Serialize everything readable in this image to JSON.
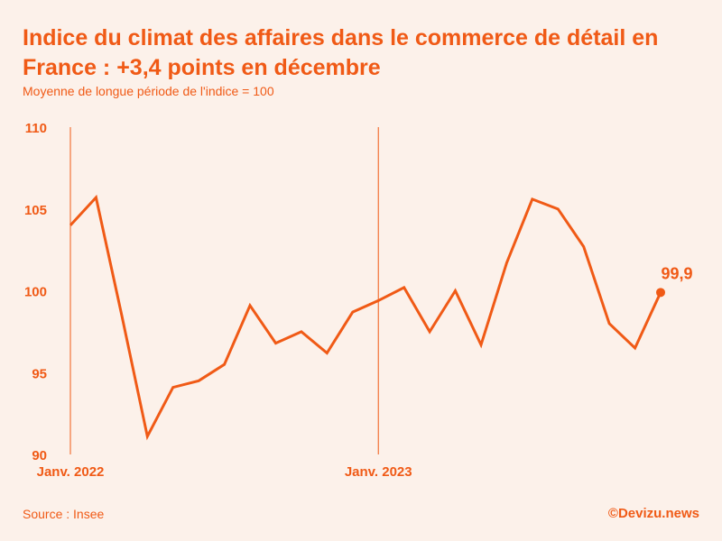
{
  "colors": {
    "accent": "#f05a16",
    "background": "#fcf1ea"
  },
  "title": "Indice du climat des affaires dans le commerce de détail en France : +3,4 points en décembre",
  "subtitle": "Moyenne de longue période de l'indice = 100",
  "footer": {
    "source": "Source : Insee",
    "credit": "©Devizu.news"
  },
  "chart_data": {
    "type": "line",
    "ylim": [
      90,
      110
    ],
    "yticks": [
      "90",
      "95",
      "100",
      "105",
      "110"
    ],
    "grid": false,
    "x": [
      "2022-01",
      "2022-02",
      "2022-03",
      "2022-04",
      "2022-05",
      "2022-06",
      "2022-07",
      "2022-08",
      "2022-09",
      "2022-10",
      "2022-11",
      "2022-12",
      "2023-01",
      "2023-02",
      "2023-03",
      "2023-04",
      "2023-05",
      "2023-06",
      "2023-07",
      "2023-08",
      "2023-09",
      "2023-10",
      "2023-11",
      "2023-12"
    ],
    "xlabels": [
      {
        "x": "2022-01",
        "label": "Janv. 2022"
      },
      {
        "x": "2023-01",
        "label": "Janv. 2023"
      }
    ],
    "series": [
      {
        "values": [
          104.0,
          105.7,
          98.5,
          91.1,
          94.1,
          94.5,
          95.5,
          99.1,
          96.8,
          97.5,
          96.2,
          98.7,
          99.4,
          100.2,
          97.5,
          100.0,
          96.7,
          101.7,
          105.6,
          105.0,
          102.7,
          98.0,
          96.5,
          99.9
        ]
      }
    ],
    "annotations": [
      {
        "x": "2023-12",
        "y": 99.9,
        "label": "99,9"
      }
    ]
  }
}
